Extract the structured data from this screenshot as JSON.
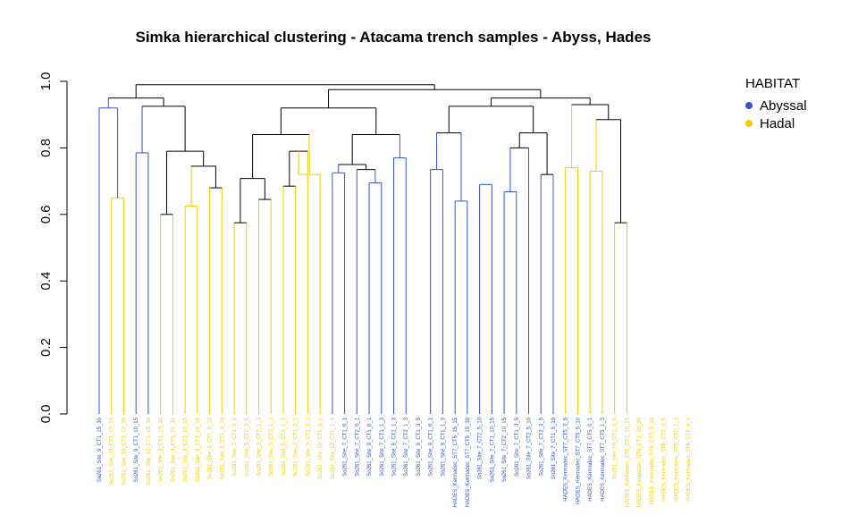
{
  "chart_data": {
    "type": "dendrogram",
    "title": "Simka hierarchical clustering - Atacama trench samples - Abyss, Hades",
    "ylim": [
      0,
      1
    ],
    "y_ticks": [
      "0.0",
      "0.2",
      "0.4",
      "0.6",
      "0.8",
      "1.0"
    ],
    "legend": {
      "title": "HABITAT",
      "placement": "right",
      "entries": [
        {
          "name": "Abyssal",
          "color": "#3355cc"
        },
        {
          "name": "Hadal",
          "color": "#f5cc00"
        }
      ]
    },
    "colors": {
      "Abyssal": "#3355cc",
      "Hadal": "#f5cc00",
      "tree": "#000000"
    },
    "leaves": [
      {
        "label": "So261_Site_9_CT1_15_30",
        "habitat": "Abyssal"
      },
      {
        "label": "So261_Site_10_CT1_10_15",
        "habitat": "Hadal"
      },
      {
        "label": "So261_Site_10_CT1_10_30",
        "habitat": "Hadal"
      },
      {
        "label": "So261_Site_9_CT1_10_15",
        "habitat": "Abyssal"
      },
      {
        "label": "So261_Site_10_CT1_15_30",
        "habitat": "Hadal"
      },
      {
        "label": "So261_Site_3_CT1_15_30",
        "habitat": "Hadal"
      },
      {
        "label": "So261_Site_3_CT1_10_30",
        "habitat": "Hadal"
      },
      {
        "label": "So261_Site_3_CT1_10_15",
        "habitat": "Hadal"
      },
      {
        "label": "So261_Site_3_CT1_10_15",
        "habitat": "Hadal"
      },
      {
        "label": "So261_Site_3_CT1_5_10",
        "habitat": "Hadal"
      },
      {
        "label": "So261_Site_3_CT1_5_10",
        "habitat": "Hadal"
      },
      {
        "label": "So261_Site_3_CT1_3_5",
        "habitat": "Hadal"
      },
      {
        "label": "So261_Site_5_CT2_3_5",
        "habitat": "Hadal"
      },
      {
        "label": "So261_Site_3_CT2_1_3",
        "habitat": "Hadal"
      },
      {
        "label": "So261_Site_5_CT2_1_3",
        "habitat": "Hadal"
      },
      {
        "label": "So261_Site_5_CT1_1_3",
        "habitat": "Hadal"
      },
      {
        "label": "So261_Site_3_CT1_0_1",
        "habitat": "Hadal"
      },
      {
        "label": "So261_Site_5_CT1_0_1",
        "habitat": "Hadal"
      },
      {
        "label": "So261_Site_10_CT1_0_1",
        "habitat": "Hadal"
      },
      {
        "label": "So261_Site_10_CT1_1_3",
        "habitat": "Hadal"
      },
      {
        "label": "So261_Site_7_CT1_0_1",
        "habitat": "Abyssal"
      },
      {
        "label": "So261_Site_7_CT2_0_1",
        "habitat": "Abyssal"
      },
      {
        "label": "So261_Site_9_CT1_0_1",
        "habitat": "Abyssal"
      },
      {
        "label": "So261_Site_7_CT1_1_3",
        "habitat": "Abyssal"
      },
      {
        "label": "So261_Site_9_CT1_1_3",
        "habitat": "Abyssal"
      },
      {
        "label": "So261_Site_7_CT2_1_3",
        "habitat": "Abyssal"
      },
      {
        "label": "So261_Site_9_CT1_3_5",
        "habitat": "Abyssal"
      },
      {
        "label": "So261_Site_9_CT1_0_1",
        "habitat": "Abyssal"
      },
      {
        "label": "So261_Site_9_CT1_1_3",
        "habitat": "Abyssal"
      },
      {
        "label": "HADES_Kermadec_ST7_CT5_15_15",
        "habitat": "Abyssal"
      },
      {
        "label": "HADES_Kermadec_ST7_CT5_15_30",
        "habitat": "Abyssal"
      },
      {
        "label": "So261_Site_7_CT2_5_10",
        "habitat": "Abyssal"
      },
      {
        "label": "So261_Site_7_CT1_10_15",
        "habitat": "Abyssal"
      },
      {
        "label": "So261_Site_7_CT2_10_15",
        "habitat": "Abyssal"
      },
      {
        "label": "So261_Site_7_CT1_3_5",
        "habitat": "Abyssal"
      },
      {
        "label": "So261_Site_7_CT2_5_10",
        "habitat": "Abyssal"
      },
      {
        "label": "So261_Site_7_CT2_3_5",
        "habitat": "Abyssal"
      },
      {
        "label": "So261_Site_7_CT1_5_10",
        "habitat": "Abyssal"
      },
      {
        "label": "HADES_Kermadec_ST7_CT5_3_5",
        "habitat": "Abyssal"
      },
      {
        "label": "HADES_Kermadec_ST7_CT5_5_10",
        "habitat": "Abyssal"
      },
      {
        "label": "HADES_Kermadec_ST7_CT5_0_1",
        "habitat": "Abyssal"
      },
      {
        "label": "HADES_Kermadec_ST7_CT5_1_3",
        "habitat": "Abyssal"
      },
      {
        "label": "So261_Site_10_CT1_3_5",
        "habitat": "Hadal"
      },
      {
        "label": "HADES_Kermadec_ST6_CT2_10_15",
        "habitat": "Hadal"
      },
      {
        "label": "HADES_Kermadec_ST6_CT2_15_30",
        "habitat": "Hadal"
      },
      {
        "label": "HADES_Kermadec_ST6_CT2_5_10",
        "habitat": "Hadal"
      },
      {
        "label": "HADES_Kermadec_ST6_CT2_3_5",
        "habitat": "Hadal"
      },
      {
        "label": "HADES_Kermadec_ST6_CT2_1_3",
        "habitat": "Hadal"
      },
      {
        "label": "HADES_Kermadec_ST6_CT2_0_1",
        "habitat": "Hadal"
      }
    ],
    "merges": [
      {
        "id": "m1",
        "left": 1,
        "right": 2,
        "height": 0.65,
        "color": "Hadal"
      },
      {
        "id": "m2",
        "left": 0,
        "right": "m1",
        "height": 0.92,
        "color": "Abyssal"
      },
      {
        "id": "m3",
        "left": 3,
        "right": 4,
        "height": 0.785,
        "color": "Abyssal"
      },
      {
        "id": "m4",
        "left": 5,
        "right": 6,
        "height": 0.6,
        "color": "tree"
      },
      {
        "id": "m5",
        "left": 7,
        "right": 8,
        "height": 0.625,
        "color": "Hadal"
      },
      {
        "id": "m6",
        "left": 9,
        "right": 10,
        "height": 0.68,
        "color": "tree"
      },
      {
        "id": "m7",
        "left": "m5",
        "right": "m6",
        "height": 0.745,
        "color": "tree"
      },
      {
        "id": "m8",
        "left": "m4",
        "right": "m7",
        "height": 0.79,
        "color": "tree"
      },
      {
        "id": "m9",
        "left": "m3",
        "right": "m8",
        "height": 0.925,
        "color": "tree"
      },
      {
        "id": "m10",
        "left": "m2",
        "right": "m9",
        "height": 0.95,
        "color": "tree"
      },
      {
        "id": "m11",
        "left": 11,
        "right": 12,
        "height": 0.575,
        "color": "tree"
      },
      {
        "id": "m12",
        "left": 13,
        "right": 14,
        "height": 0.645,
        "color": "tree"
      },
      {
        "id": "m13",
        "left": "m11",
        "right": "m12",
        "height": 0.708,
        "color": "tree"
      },
      {
        "id": "m14",
        "left": 15,
        "right": 16,
        "height": 0.685,
        "color": "tree"
      },
      {
        "id": "m15",
        "left": "m14",
        "right": 17,
        "height": 0.79,
        "color": "tree"
      },
      {
        "id": "m16",
        "left": "m15",
        "right": 18,
        "height": 0.72,
        "color": "Hadal"
      },
      {
        "id": "m17",
        "left": "m13",
        "right": "m16",
        "height": 0.84,
        "color": "tree"
      },
      {
        "id": "m18",
        "left": 19,
        "right": 20,
        "height": 0.725,
        "color": "Abyssal"
      },
      {
        "id": "m19",
        "left": 22,
        "right": 23,
        "height": 0.695,
        "color": "Abyssal"
      },
      {
        "id": "m20",
        "left": 21,
        "right": "m19",
        "height": 0.735,
        "color": "tree"
      },
      {
        "id": "m21",
        "left": "m18",
        "right": "m20",
        "height": 0.75,
        "color": "tree"
      },
      {
        "id": "m22",
        "left": 24,
        "right": 25,
        "height": 0.77,
        "color": "Abyssal"
      },
      {
        "id": "m23",
        "left": "m21",
        "right": "m22",
        "height": 0.84,
        "color": "tree"
      },
      {
        "id": "m24",
        "left": "m17",
        "right": "m23",
        "height": 0.92,
        "color": "tree"
      },
      {
        "id": "m25",
        "left": 27,
        "right": 28,
        "height": 0.735,
        "color": "Abyssal"
      },
      {
        "id": "m26",
        "left": 29,
        "right": 30,
        "height": 0.64,
        "color": "Abyssal"
      },
      {
        "id": "m27",
        "left": "m25",
        "right": "m26",
        "height": 0.845,
        "color": "tree"
      },
      {
        "id": "m28",
        "left": 31,
        "right": 32,
        "height": 0.69,
        "color": "Abyssal"
      },
      {
        "id": "m29",
        "left": 33,
        "right": 34,
        "height": 0.668,
        "color": "Abyssal"
      },
      {
        "id": "m30",
        "left": "m29",
        "right": 35,
        "height": 0.8,
        "color": "tree"
      },
      {
        "id": "m31",
        "left": 36,
        "right": 37,
        "height": 0.72,
        "color": "tree"
      },
      {
        "id": "m32",
        "left": "m30",
        "right": "m31",
        "height": 0.845,
        "color": "tree"
      },
      {
        "id": "m33",
        "left": "m27",
        "right": "m32",
        "height": 0.925,
        "color": "tree"
      },
      {
        "id": "m34",
        "left": 38,
        "right": 39,
        "height": 0.74,
        "color": "Hadal"
      },
      {
        "id": "m35",
        "left": 40,
        "right": 41,
        "height": 0.73,
        "color": "Hadal"
      },
      {
        "id": "m36",
        "left": 42,
        "right": 43,
        "height": 0.575,
        "color": "tree"
      },
      {
        "id": "m37",
        "left": "m35",
        "right": "m36",
        "height": 0.885,
        "color": "tree"
      },
      {
        "id": "m38",
        "left": "m34",
        "right": "m37",
        "height": 0.93,
        "color": "tree"
      },
      {
        "id": "m39",
        "left": "m33",
        "right": "m38",
        "height": 0.95,
        "color": "tree"
      },
      {
        "id": "m40",
        "left": "m24",
        "right": "m39",
        "height": 0.975,
        "color": "tree"
      },
      {
        "id": "m41",
        "left": "m10",
        "right": "m40",
        "height": 0.99,
        "color": "tree"
      }
    ]
  }
}
